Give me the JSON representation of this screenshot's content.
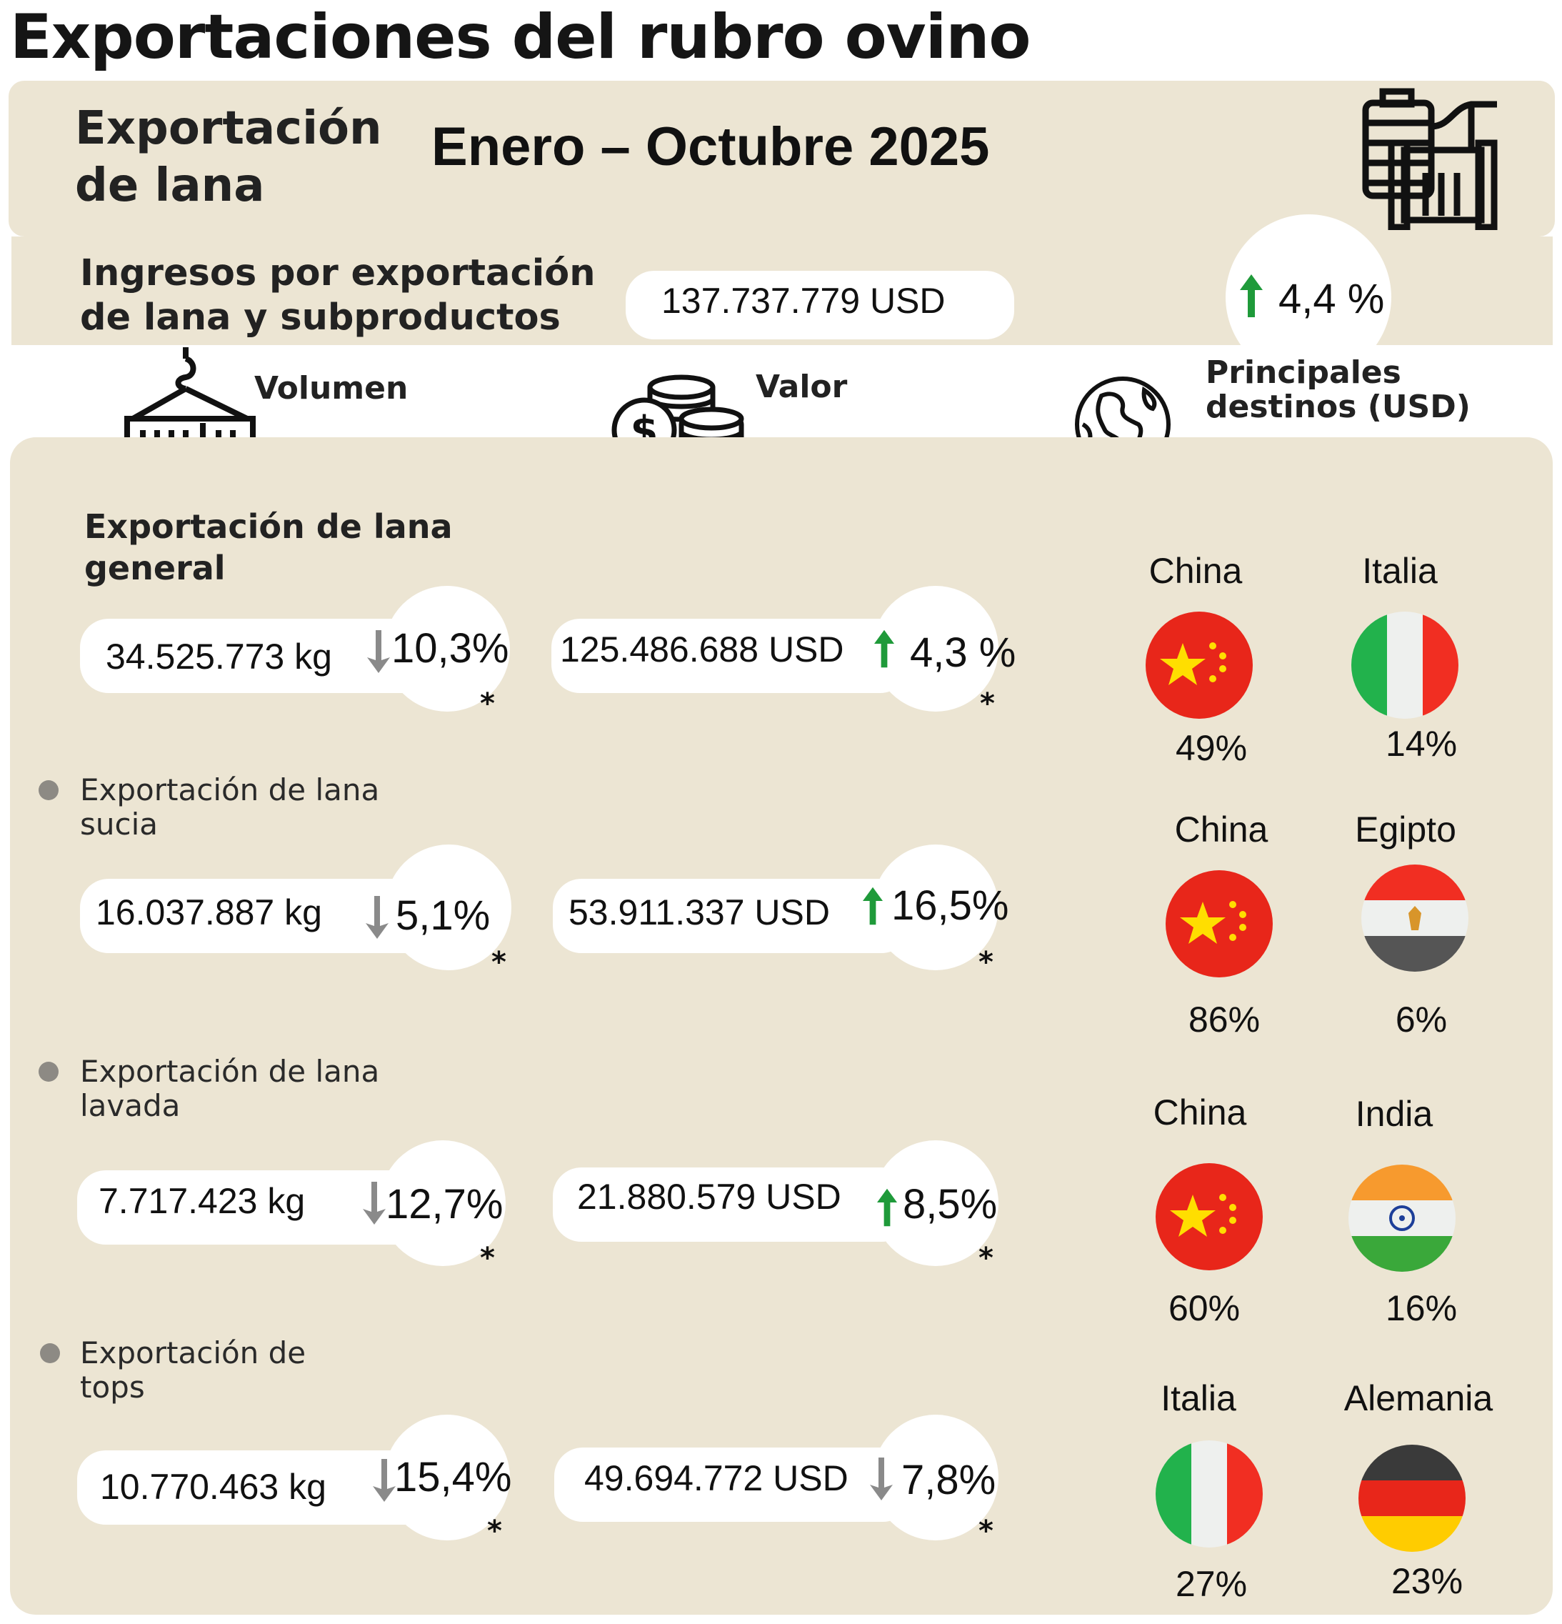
{
  "page_title": "Exportaciones del rubro ovino",
  "header": {
    "subtitle": "Exportación de lana",
    "subtitle_line1": "Exportación",
    "subtitle_line2": "de lana",
    "period": "Enero – Octubre 2025"
  },
  "ingresos": {
    "label_line1": "Ingresos por exportación",
    "label_line2": "de lana  y subproductos",
    "value": "137.737.779 USD",
    "change": "4,4 %",
    "direction": "up"
  },
  "columns": {
    "volumen": "Volumen",
    "valor": "Valor",
    "destinos_line1": "Principales",
    "destinos_line2": "destinos (USD)"
  },
  "footnote_mark": "*",
  "colors": {
    "beige": "#ece5d3",
    "up": "#1f9a3a",
    "down": "#8a8a8a"
  },
  "sections": [
    {
      "title_line1": "Exportación de lana",
      "title_line2": "general",
      "volume": "34.525.773 kg",
      "volume_change": "10,3%",
      "volume_dir": "down",
      "value": "125.486.688 USD",
      "value_change": "4,3 %",
      "value_dir": "up",
      "dest1": "China",
      "dest1_share": "49%",
      "dest2": "Italia",
      "dest2_share": "14%"
    },
    {
      "title_line1": "Exportación de lana",
      "title_line2": "sucia",
      "volume": "16.037.887 kg",
      "volume_change": "5,1%",
      "volume_dir": "down",
      "value": "53.911.337 USD",
      "value_change": "16,5%",
      "value_dir": "up",
      "dest1": "China",
      "dest1_share": "86%",
      "dest2": "Egipto",
      "dest2_share": "6%"
    },
    {
      "title_line1": "Exportación de lana",
      "title_line2": "lavada",
      "volume": "7.717.423 kg",
      "volume_change": "12,7%",
      "volume_dir": "down",
      "value": "21.880.579 USD",
      "value_change": "8,5%",
      "value_dir": "up",
      "dest1": "China",
      "dest1_share": "60%",
      "dest2": "India",
      "dest2_share": "16%"
    },
    {
      "title_line1": "Exportación de",
      "title_line2": "tops",
      "volume": "10.770.463 kg",
      "volume_change": "15,4%",
      "volume_dir": "down",
      "value": "49.694.772 USD",
      "value_change": "7,8%",
      "value_dir": "down",
      "dest1": "Italia",
      "dest1_share": "27%",
      "dest2": "Alemania",
      "dest2_share": "23%"
    }
  ]
}
